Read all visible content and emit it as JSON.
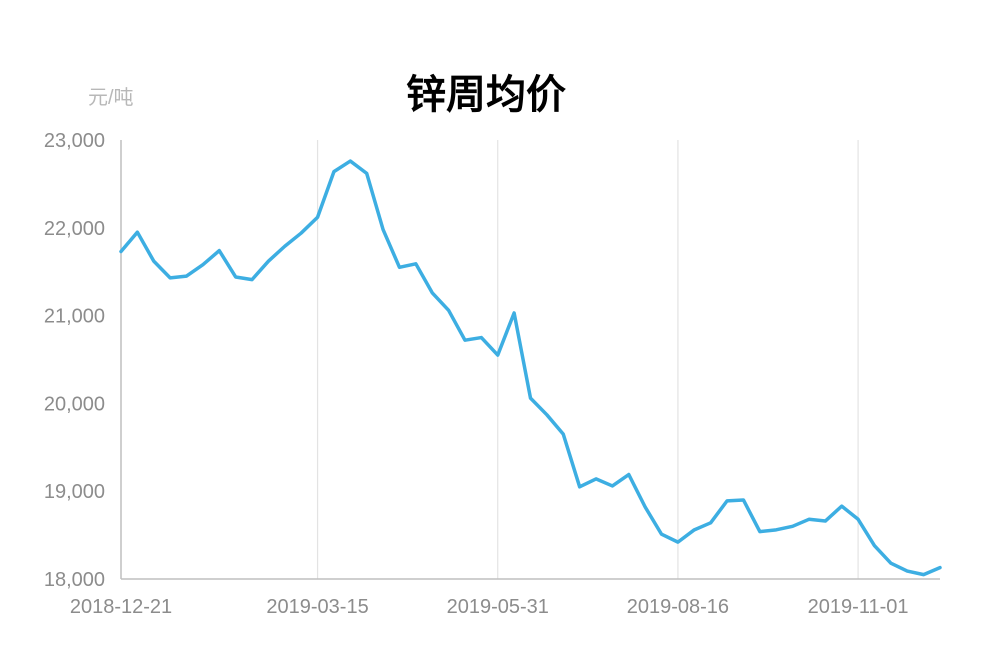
{
  "chart_data": {
    "type": "line",
    "title": "锌周均价",
    "ylabel": "元/吨",
    "xlabel": "",
    "ylim": [
      18000,
      23000
    ],
    "yticks": [
      18000,
      19000,
      20000,
      21000,
      22000,
      23000
    ],
    "ytick_labels": [
      "18,000",
      "19,000",
      "20,000",
      "21,000",
      "22,000",
      "23,000"
    ],
    "xtick_labels": [
      "2018-12-21",
      "2019-03-15",
      "2019-05-31",
      "2019-08-16",
      "2019-11-01"
    ],
    "xtick_index": [
      0,
      12,
      23,
      34,
      45
    ],
    "grid": "vertical",
    "line_color": "#3daee2",
    "series": [
      {
        "values": [
          21730,
          21950,
          21620,
          21430,
          21450,
          21580,
          21740,
          21440,
          21410,
          21620,
          21790,
          21940,
          22120,
          22640,
          22760,
          22620,
          21980,
          21550,
          21590,
          21260,
          21060,
          20720,
          20750,
          20550,
          21030,
          20060,
          19870,
          19650,
          19050,
          19140,
          19060,
          19190,
          18820,
          18510,
          18420,
          18560,
          18640,
          18890,
          18900,
          18540,
          18560,
          18600,
          18680,
          18660,
          18830,
          18680,
          18380,
          18180,
          18090,
          18050,
          18130
        ]
      }
    ]
  }
}
